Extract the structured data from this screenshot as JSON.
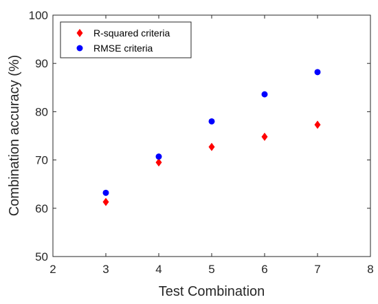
{
  "chart_data": {
    "type": "scatter",
    "title": "",
    "xlabel": "Test Combination",
    "ylabel": "Combination accuracy (%)",
    "xlim": [
      2,
      8
    ],
    "ylim": [
      50,
      100
    ],
    "xticks": [
      2,
      3,
      4,
      5,
      6,
      7,
      8
    ],
    "yticks": [
      50,
      60,
      70,
      80,
      90,
      100
    ],
    "grid": false,
    "legend_position": "top-left",
    "series": [
      {
        "name": "R-squared criteria",
        "marker": "diamond",
        "color": "#ff0000",
        "x": [
          3,
          4,
          5,
          6,
          7
        ],
        "y": [
          61.3,
          69.5,
          72.7,
          74.8,
          77.3
        ]
      },
      {
        "name": "RMSE criteria",
        "marker": "circle",
        "color": "#0000ff",
        "x": [
          3,
          4,
          5,
          6,
          7
        ],
        "y": [
          63.2,
          70.7,
          78.0,
          83.6,
          88.2
        ]
      }
    ]
  }
}
